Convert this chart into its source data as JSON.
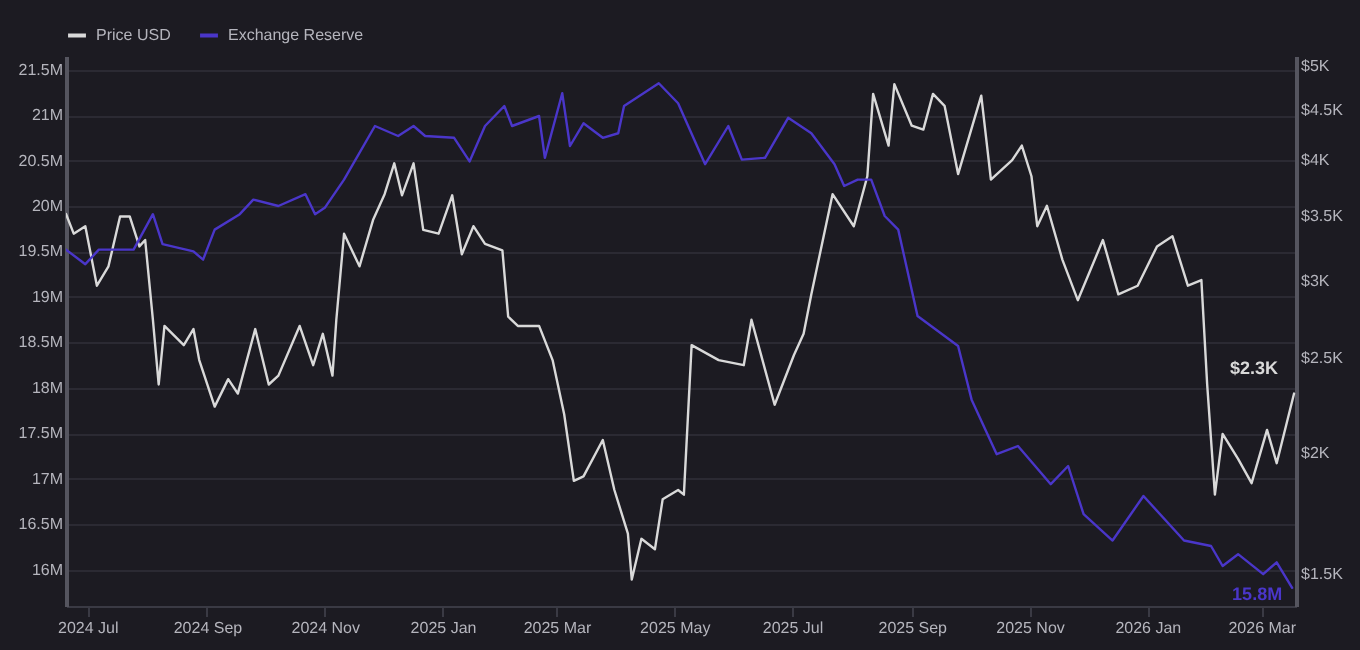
{
  "chart_data": {
    "type": "line",
    "series": [
      {
        "name": "Price USD",
        "color": "#d9d9d9",
        "axis": "y2",
        "x": [
          "2024-06-20",
          "2024-06-24",
          "2024-06-30",
          "2024-07-06",
          "2024-07-12",
          "2024-07-18",
          "2024-07-23",
          "2024-07-28",
          "2024-07-31",
          "2024-08-04",
          "2024-08-07",
          "2024-08-10",
          "2024-08-20",
          "2024-08-25",
          "2024-08-28",
          "2024-09-05",
          "2024-09-12",
          "2024-09-17",
          "2024-09-26",
          "2024-10-03",
          "2024-10-08",
          "2024-10-19",
          "2024-10-26",
          "2024-10-31",
          "2024-11-05",
          "2024-11-07",
          "2024-11-11",
          "2024-11-19",
          "2024-11-26",
          "2024-12-02",
          "2024-12-07",
          "2024-12-11",
          "2024-12-17",
          "2024-12-22",
          "2024-12-30",
          "2025-01-06",
          "2025-01-11",
          "2025-01-17",
          "2025-01-23",
          "2025-02-01",
          "2025-02-04",
          "2025-02-09",
          "2025-02-20",
          "2025-02-27",
          "2025-03-05",
          "2025-03-10",
          "2025-03-15",
          "2025-03-25",
          "2025-03-31",
          "2025-04-07",
          "2025-04-09",
          "2025-04-14",
          "2025-04-21",
          "2025-04-25",
          "2025-05-03",
          "2025-05-06",
          "2025-05-10",
          "2025-05-24",
          "2025-06-06",
          "2025-06-10",
          "2025-06-22",
          "2025-07-02",
          "2025-07-07",
          "2025-07-11",
          "2025-07-22",
          "2025-08-02",
          "2025-08-09",
          "2025-08-12",
          "2025-08-20",
          "2025-08-23",
          "2025-09-01",
          "2025-09-07",
          "2025-09-12",
          "2025-09-18",
          "2025-09-25",
          "2025-10-07",
          "2025-10-12",
          "2025-10-23",
          "2025-10-28",
          "2025-11-02",
          "2025-11-05",
          "2025-11-10",
          "2025-11-18",
          "2025-11-26",
          "2025-12-09",
          "2025-12-17",
          "2025-12-27",
          "2026-01-06",
          "2026-01-14",
          "2026-01-22",
          "2026-01-29",
          "2026-02-01",
          "2026-02-05",
          "2026-02-09",
          "2026-02-17",
          "2026-02-24",
          "2026-03-04",
          "2026-03-09",
          "2026-03-18"
        ],
        "values": [
          3520,
          3360,
          3420,
          2970,
          3110,
          3500,
          3500,
          3260,
          3310,
          2740,
          2350,
          2700,
          2580,
          2680,
          2490,
          2230,
          2380,
          2300,
          2680,
          2350,
          2400,
          2700,
          2460,
          2650,
          2400,
          2740,
          3360,
          3110,
          3470,
          3690,
          3970,
          3680,
          3970,
          3390,
          3360,
          3680,
          3200,
          3420,
          3280,
          3230,
          2760,
          2700,
          2700,
          2490,
          2190,
          1870,
          1890,
          2060,
          1830,
          1650,
          1480,
          1630,
          1590,
          1790,
          1830,
          1810,
          2580,
          2490,
          2460,
          2740,
          2240,
          2520,
          2650,
          2910,
          3690,
          3420,
          3850,
          4680,
          4140,
          4790,
          4340,
          4300,
          4680,
          4550,
          3870,
          4660,
          3820,
          4000,
          4140,
          3850,
          3420,
          3590,
          3160,
          2870,
          3310,
          2910,
          2970,
          3260,
          3340,
          2970,
          3010,
          2350,
          1810,
          2090,
          1970,
          1860,
          2110,
          1950,
          2300
        ],
        "value_labels": [
          null,
          null,
          null,
          null,
          null,
          null,
          null,
          null,
          null,
          null,
          null,
          null,
          null,
          null,
          null,
          null,
          null,
          null,
          null,
          null,
          null,
          null,
          null,
          null,
          null,
          null,
          null,
          null,
          null,
          null,
          null,
          null,
          null,
          null,
          null,
          null,
          null,
          null,
          null,
          null,
          null,
          null,
          null,
          null,
          null,
          null,
          null,
          null,
          null,
          null,
          null,
          null,
          null,
          null,
          null,
          null,
          null,
          null,
          null,
          null,
          null,
          null,
          null,
          null,
          null,
          null,
          null,
          null,
          null,
          null,
          null,
          null,
          null,
          null,
          null,
          null,
          null,
          null,
          null,
          null,
          null,
          null,
          null,
          null,
          null,
          null,
          null,
          null,
          null,
          null,
          null,
          null,
          null,
          null,
          null,
          null,
          null,
          null,
          "$2.3K"
        ]
      },
      {
        "name": "Exchange Reserve",
        "color": "#4a36c9",
        "x": [
          "2024-06-20",
          "2024-06-30",
          "2024-07-07",
          "2024-07-25",
          "2024-08-04",
          "2024-08-09",
          "2024-08-25",
          "2024-08-30",
          "2024-09-05",
          "2024-09-18",
          "2024-09-25",
          "2024-10-08",
          "2024-10-22",
          "2024-10-27",
          "2024-11-01",
          "2024-11-11",
          "2024-11-27",
          "2024-12-09",
          "2024-12-17",
          "2024-12-23",
          "2025-01-07",
          "2025-01-15",
          "2025-01-23",
          "2025-02-02",
          "2025-02-06",
          "2025-02-20",
          "2025-02-23",
          "2025-03-04",
          "2025-03-08",
          "2025-03-15",
          "2025-03-25",
          "2025-04-02",
          "2025-04-05",
          "2025-04-23",
          "2025-05-03",
          "2025-05-17",
          "2025-05-29",
          "2025-06-05",
          "2025-06-17",
          "2025-06-29",
          "2025-07-11",
          "2025-07-23",
          "2025-07-28",
          "2025-08-04",
          "2025-08-11",
          "2025-08-18",
          "2025-08-25",
          "2025-09-04",
          "2025-09-25",
          "2025-10-02",
          "2025-10-15",
          "2025-10-26",
          "2025-11-12",
          "2025-11-21",
          "2025-11-29",
          "2025-12-14",
          "2025-12-30",
          "2026-01-20",
          "2026-02-03",
          "2026-02-09",
          "2026-02-17",
          "2026-03-02",
          "2026-03-09",
          "2026-03-17"
        ],
        "values": [
          19.52,
          19.36,
          19.52,
          19.52,
          19.91,
          19.58,
          19.5,
          19.41,
          19.74,
          19.91,
          20.07,
          20.0,
          20.13,
          19.91,
          19.98,
          20.29,
          20.88,
          20.77,
          20.88,
          20.77,
          20.75,
          20.49,
          20.88,
          21.1,
          20.88,
          20.99,
          20.53,
          21.24,
          20.66,
          20.91,
          20.75,
          20.8,
          21.1,
          21.35,
          21.13,
          20.46,
          20.88,
          20.51,
          20.53,
          20.97,
          20.8,
          20.46,
          20.22,
          20.29,
          20.29,
          19.89,
          19.74,
          18.79,
          18.46,
          17.87,
          17.27,
          17.36,
          16.94,
          17.14,
          16.61,
          16.32,
          16.81,
          16.32,
          16.26,
          16.04,
          16.17,
          15.95,
          16.08,
          15.8
        ],
        "value_labels": [
          null,
          null,
          null,
          null,
          null,
          null,
          null,
          null,
          null,
          null,
          null,
          null,
          null,
          null,
          null,
          null,
          null,
          null,
          null,
          null,
          null,
          null,
          null,
          null,
          null,
          null,
          null,
          null,
          null,
          null,
          null,
          null,
          null,
          null,
          null,
          null,
          null,
          null,
          null,
          null,
          null,
          null,
          null,
          null,
          null,
          null,
          null,
          null,
          null,
          null,
          null,
          null,
          null,
          null,
          null,
          null,
          null,
          null,
          null,
          null,
          null,
          null,
          null,
          "15.8M"
        ]
      }
    ],
    "xlim": [
      "2024-06-20",
      "2026-03-19"
    ],
    "xticks": [
      {
        "value": "2024-07-01",
        "label": "2024 Jul"
      },
      {
        "value": "2024-09-01",
        "label": "2024 Sep"
      },
      {
        "value": "2024-11-01",
        "label": "2024 Nov"
      },
      {
        "value": "2025-01-01",
        "label": "2025 Jan"
      },
      {
        "value": "2025-03-01",
        "label": "2025 Mar"
      },
      {
        "value": "2025-05-01",
        "label": "2025 May"
      },
      {
        "value": "2025-07-01",
        "label": "2025 Jul"
      },
      {
        "value": "2025-09-01",
        "label": "2025 Sep"
      },
      {
        "value": "2025-11-01",
        "label": "2025 Nov"
      },
      {
        "value": "2026-01-01",
        "label": "2026 Jan"
      },
      {
        "value": "2026-03-01",
        "label": "2026 Mar"
      }
    ],
    "ylim": [
      15.6,
      21.65
    ],
    "yticks": [
      {
        "value": 16,
        "label": "16M"
      },
      {
        "value": 16.5,
        "label": "16.5M"
      },
      {
        "value": 17,
        "label": "17M"
      },
      {
        "value": 17.5,
        "label": "17.5M"
      },
      {
        "value": 18,
        "label": "18M"
      },
      {
        "value": 18.5,
        "label": "18.5M"
      },
      {
        "value": 19,
        "label": "19M"
      },
      {
        "value": 19.5,
        "label": "19.5M"
      },
      {
        "value": 20,
        "label": "20M"
      },
      {
        "value": 20.5,
        "label": "20.5M"
      },
      {
        "value": 21,
        "label": "21M"
      },
      {
        "value": 21.5,
        "label": "21.5M"
      }
    ],
    "y2lim": [
      1390,
      5120
    ],
    "y2ticks": [
      {
        "value": 1500,
        "label": "$1.5K"
      },
      {
        "value": 2000,
        "label": "$2K"
      },
      {
        "value": 2500,
        "label": "$2.5K"
      },
      {
        "value": 3000,
        "label": "$3K"
      },
      {
        "value": 3500,
        "label": "$3.5K"
      },
      {
        "value": 4000,
        "label": "$4K"
      },
      {
        "value": 4500,
        "label": "$4.5K"
      },
      {
        "value": 5000,
        "label": "$5K"
      }
    ],
    "log": "y2",
    "grid": "y",
    "legend": "top",
    "marker": "none",
    "line_style": "solid"
  }
}
